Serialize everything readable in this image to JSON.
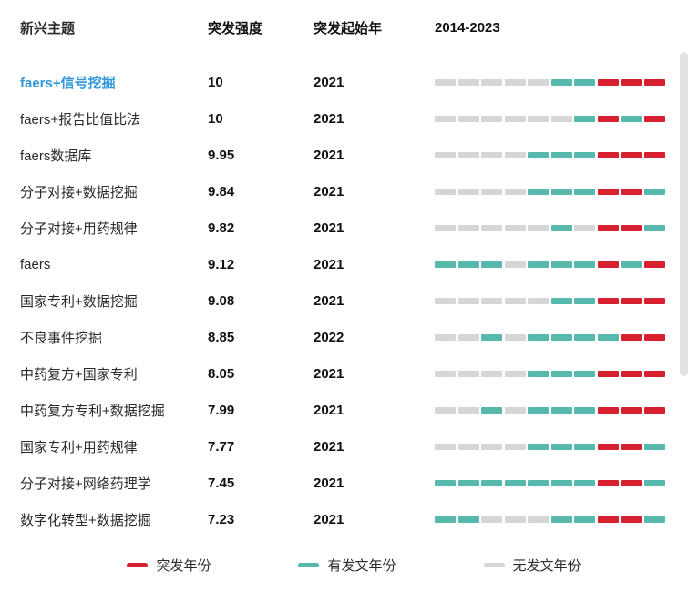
{
  "header": {
    "topic": "新兴主题",
    "strength": "突发强度",
    "start_year": "突发起始年",
    "timeline": "2014-2023"
  },
  "colors": {
    "burst": "#d7202f",
    "pub": "#57b8ac",
    "none": "#d6d6d6",
    "highlight": "#3398db",
    "scrollbar": "#e2e2e5"
  },
  "legend": [
    {
      "label": "突发年份",
      "type": "burst"
    },
    {
      "label": "有发文年份",
      "type": "pub"
    },
    {
      "label": "无发文年份",
      "type": "none"
    }
  ],
  "rows": [
    {
      "topic": "faers+信号挖掘",
      "highlighted": true,
      "strength": "10",
      "start_year": "2021",
      "timeline": [
        "none",
        "none",
        "none",
        "none",
        "none",
        "pub",
        "pub",
        "burst",
        "burst",
        "burst"
      ]
    },
    {
      "topic": "faers+报告比值比法",
      "highlighted": false,
      "strength": "10",
      "start_year": "2021",
      "timeline": [
        "none",
        "none",
        "none",
        "none",
        "none",
        "none",
        "pub",
        "burst",
        "pub",
        "burst"
      ]
    },
    {
      "topic": "faers数据库",
      "highlighted": false,
      "strength": "9.95",
      "start_year": "2021",
      "timeline": [
        "none",
        "none",
        "none",
        "none",
        "pub",
        "pub",
        "pub",
        "burst",
        "burst",
        "burst"
      ]
    },
    {
      "topic": "分子对接+数据挖掘",
      "highlighted": false,
      "strength": "9.84",
      "start_year": "2021",
      "timeline": [
        "none",
        "none",
        "none",
        "none",
        "pub",
        "pub",
        "pub",
        "burst",
        "burst",
        "pub"
      ]
    },
    {
      "topic": "分子对接+用药规律",
      "highlighted": false,
      "strength": "9.82",
      "start_year": "2021",
      "timeline": [
        "none",
        "none",
        "none",
        "none",
        "none",
        "pub",
        "none",
        "burst",
        "burst",
        "pub"
      ]
    },
    {
      "topic": "faers",
      "highlighted": false,
      "strength": "9.12",
      "start_year": "2021",
      "timeline": [
        "pub",
        "pub",
        "pub",
        "none",
        "pub",
        "pub",
        "pub",
        "burst",
        "pub",
        "burst"
      ]
    },
    {
      "topic": "国家专利+数据挖掘",
      "highlighted": false,
      "strength": "9.08",
      "start_year": "2021",
      "timeline": [
        "none",
        "none",
        "none",
        "none",
        "none",
        "pub",
        "pub",
        "burst",
        "burst",
        "burst"
      ]
    },
    {
      "topic": "不良事件挖掘",
      "highlighted": false,
      "strength": "8.85",
      "start_year": "2022",
      "timeline": [
        "none",
        "none",
        "pub",
        "none",
        "pub",
        "pub",
        "pub",
        "pub",
        "burst",
        "burst"
      ]
    },
    {
      "topic": "中药复方+国家专利",
      "highlighted": false,
      "strength": "8.05",
      "start_year": "2021",
      "timeline": [
        "none",
        "none",
        "none",
        "none",
        "pub",
        "pub",
        "pub",
        "burst",
        "burst",
        "burst"
      ]
    },
    {
      "topic": "中药复方专利+数据挖掘",
      "highlighted": false,
      "strength": "7.99",
      "start_year": "2021",
      "timeline": [
        "none",
        "none",
        "pub",
        "none",
        "pub",
        "pub",
        "pub",
        "burst",
        "burst",
        "burst"
      ]
    },
    {
      "topic": "国家专利+用药规律",
      "highlighted": false,
      "strength": "7.77",
      "start_year": "2021",
      "timeline": [
        "none",
        "none",
        "none",
        "none",
        "pub",
        "pub",
        "pub",
        "burst",
        "burst",
        "pub"
      ]
    },
    {
      "topic": "分子对接+网络药理学",
      "highlighted": false,
      "strength": "7.45",
      "start_year": "2021",
      "timeline": [
        "pub",
        "pub",
        "pub",
        "pub",
        "pub",
        "pub",
        "pub",
        "burst",
        "burst",
        "pub"
      ]
    },
    {
      "topic": "数字化转型+数据挖掘",
      "highlighted": false,
      "strength": "7.23",
      "start_year": "2021",
      "timeline": [
        "pub",
        "pub",
        "none",
        "none",
        "none",
        "pub",
        "pub",
        "burst",
        "burst",
        "pub"
      ]
    }
  ],
  "chart_data": {
    "type": "table",
    "title": "新兴主题突发检测 2014-2023",
    "columns": [
      "新兴主题",
      "突发强度",
      "突发起始年",
      "2014-2023"
    ],
    "years": [
      2014,
      2015,
      2016,
      2017,
      2018,
      2019,
      2020,
      2021,
      2022,
      2023
    ],
    "legend": [
      "突发年份",
      "有发文年份",
      "无发文年份"
    ],
    "rows": [
      {
        "topic": "faers+信号挖掘",
        "strength": 10,
        "start_year": 2021,
        "year_status": [
          "无",
          "无",
          "无",
          "无",
          "无",
          "有",
          "有",
          "突发",
          "突发",
          "突发"
        ]
      },
      {
        "topic": "faers+报告比值比法",
        "strength": 10,
        "start_year": 2021,
        "year_status": [
          "无",
          "无",
          "无",
          "无",
          "无",
          "无",
          "有",
          "突发",
          "有",
          "突发"
        ]
      },
      {
        "topic": "faers数据库",
        "strength": 9.95,
        "start_year": 2021,
        "year_status": [
          "无",
          "无",
          "无",
          "无",
          "有",
          "有",
          "有",
          "突发",
          "突发",
          "突发"
        ]
      },
      {
        "topic": "分子对接+数据挖掘",
        "strength": 9.84,
        "start_year": 2021,
        "year_status": [
          "无",
          "无",
          "无",
          "无",
          "有",
          "有",
          "有",
          "突发",
          "突发",
          "有"
        ]
      },
      {
        "topic": "分子对接+用药规律",
        "strength": 9.82,
        "start_year": 2021,
        "year_status": [
          "无",
          "无",
          "无",
          "无",
          "无",
          "有",
          "无",
          "突发",
          "突发",
          "有"
        ]
      },
      {
        "topic": "faers",
        "strength": 9.12,
        "start_year": 2021,
        "year_status": [
          "有",
          "有",
          "有",
          "无",
          "有",
          "有",
          "有",
          "突发",
          "有",
          "突发"
        ]
      },
      {
        "topic": "国家专利+数据挖掘",
        "strength": 9.08,
        "start_year": 2021,
        "year_status": [
          "无",
          "无",
          "无",
          "无",
          "无",
          "有",
          "有",
          "突发",
          "突发",
          "突发"
        ]
      },
      {
        "topic": "不良事件挖掘",
        "strength": 8.85,
        "start_year": 2022,
        "year_status": [
          "无",
          "无",
          "有",
          "无",
          "有",
          "有",
          "有",
          "有",
          "突发",
          "突发"
        ]
      },
      {
        "topic": "中药复方+国家专利",
        "strength": 8.05,
        "start_year": 2021,
        "year_status": [
          "无",
          "无",
          "无",
          "无",
          "有",
          "有",
          "有",
          "突发",
          "突发",
          "突发"
        ]
      },
      {
        "topic": "中药复方专利+数据挖掘",
        "strength": 7.99,
        "start_year": 2021,
        "year_status": [
          "无",
          "无",
          "有",
          "无",
          "有",
          "有",
          "有",
          "突发",
          "突发",
          "突发"
        ]
      },
      {
        "topic": "国家专利+用药规律",
        "strength": 7.77,
        "start_year": 2021,
        "year_status": [
          "无",
          "无",
          "无",
          "无",
          "有",
          "有",
          "有",
          "突发",
          "突发",
          "有"
        ]
      },
      {
        "topic": "分子对接+网络药理学",
        "strength": 7.45,
        "start_year": 2021,
        "year_status": [
          "有",
          "有",
          "有",
          "有",
          "有",
          "有",
          "有",
          "突发",
          "突发",
          "有"
        ]
      },
      {
        "topic": "数字化转型+数据挖掘",
        "strength": 7.23,
        "start_year": 2021,
        "year_status": [
          "有",
          "有",
          "无",
          "无",
          "无",
          "有",
          "有",
          "突发",
          "突发",
          "有"
        ]
      }
    ]
  }
}
